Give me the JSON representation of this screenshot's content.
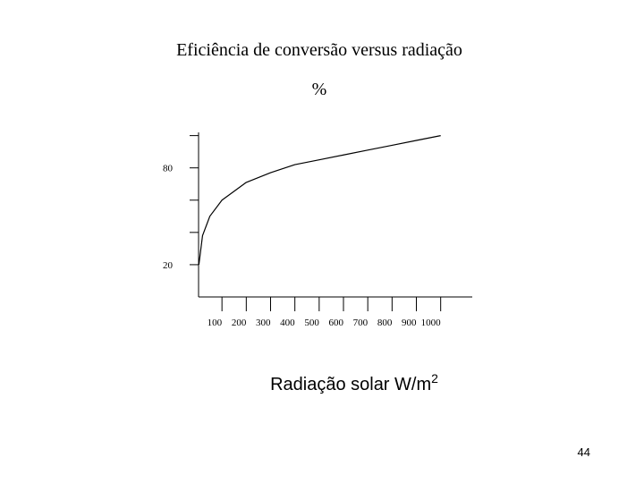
{
  "chart_data": {
    "type": "line",
    "title": "Eficiência de conversão versus radiação",
    "y_label": "%",
    "x_label": "Radiação solar W/m",
    "x_label_superscript": "2",
    "x": [
      5,
      20,
      50,
      100,
      200,
      300,
      400,
      500,
      600,
      700,
      800,
      900,
      1000
    ],
    "series": [
      {
        "color": "#000000",
        "values": [
          20,
          38,
          50,
          60,
          71,
          77,
          82,
          85,
          88,
          91,
          94,
          97,
          100
        ]
      }
    ],
    "xlim": [
      0,
      1130
    ],
    "ylim": [
      0,
      102
    ],
    "xticks": [
      100,
      200,
      300,
      400,
      500,
      600,
      700,
      800,
      900,
      1000
    ],
    "yticks": [
      20,
      80
    ],
    "yminor_ticks": [
      40,
      60,
      100
    ]
  },
  "page_number": "44"
}
